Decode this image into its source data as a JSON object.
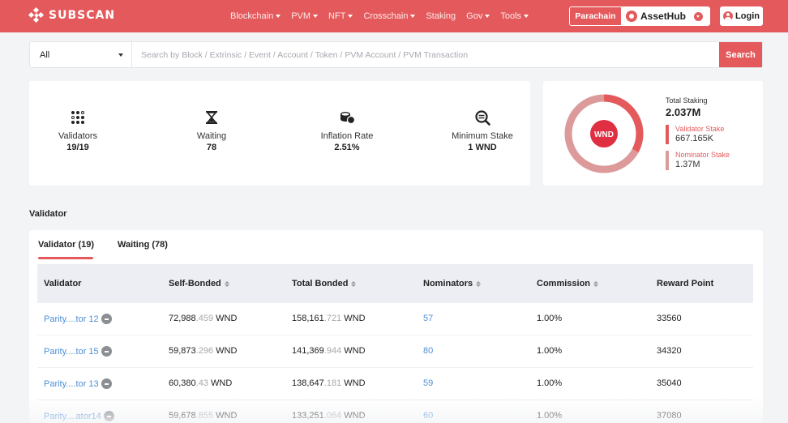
{
  "header": {
    "logo_text": "SUBSCAN",
    "nav": [
      {
        "label": "Blockchain",
        "has_caret": true
      },
      {
        "label": "PVM",
        "has_caret": true
      },
      {
        "label": "NFT",
        "has_caret": true
      },
      {
        "label": "Crosschain",
        "has_caret": true
      },
      {
        "label": "Staking",
        "has_caret": false
      },
      {
        "label": "Gov",
        "has_caret": true
      },
      {
        "label": "Tools",
        "has_caret": true
      }
    ],
    "chain_type": "Parachain",
    "network": "AssetHub",
    "login": "Login"
  },
  "search": {
    "filter": "All",
    "placeholder": "Search by Block / Extrinsic / Event / Account / Token / PVM Account / PVM Transaction",
    "button": "Search"
  },
  "stats": [
    {
      "label": "Validators",
      "value": "19/19",
      "icon": "validators-dots-icon"
    },
    {
      "label": "Waiting",
      "value": "78",
      "icon": "hourglass-icon"
    },
    {
      "label": "Inflation Rate",
      "value": "2.51%",
      "icon": "coins-icon"
    },
    {
      "label": "Minimum Stake",
      "value": "1 WND",
      "icon": "magnifier-icon"
    }
  ],
  "staking": {
    "token": "WND",
    "total_label": "Total Staking",
    "total_value": "2.037M",
    "validator_label": "Validator Stake",
    "validator_value": "667.165K",
    "nominator_label": "Nominator Stake",
    "nominator_value": "1.37M",
    "validator_color": "#e45a5c",
    "nominator_color": "#dd9a9b"
  },
  "section": {
    "title": "Validator",
    "tabs": [
      "Validator (19)",
      "Waiting (78)"
    ],
    "active_tab": 0
  },
  "table": {
    "columns": [
      "Validator",
      "Self-Bonded",
      "Total Bonded",
      "Nominators",
      "Commission",
      "Reward Point"
    ],
    "rows": [
      {
        "validator": "Parity....tor 12",
        "self_int": "72,988",
        "self_dec": ".459",
        "total_int": "158,161",
        "total_dec": ".721",
        "unit": "WND",
        "nominators": "57",
        "commission": "1.00%",
        "reward": "33560"
      },
      {
        "validator": "Parity....tor 15",
        "self_int": "59,873",
        "self_dec": ".296",
        "total_int": "141,369",
        "total_dec": ".944",
        "unit": "WND",
        "nominators": "80",
        "commission": "1.00%",
        "reward": "34320"
      },
      {
        "validator": "Parity....tor 13",
        "self_int": "60,380",
        "self_dec": ".43",
        "total_int": "138,647",
        "total_dec": ".181",
        "unit": "WND",
        "nominators": "59",
        "commission": "1.00%",
        "reward": "35040"
      },
      {
        "validator": "Parity....ator14",
        "self_int": "59,678",
        "self_dec": ".855",
        "total_int": "133,251",
        "total_dec": ".064",
        "unit": "WND",
        "nominators": "60",
        "commission": "1.00%",
        "reward": "37080"
      }
    ]
  }
}
